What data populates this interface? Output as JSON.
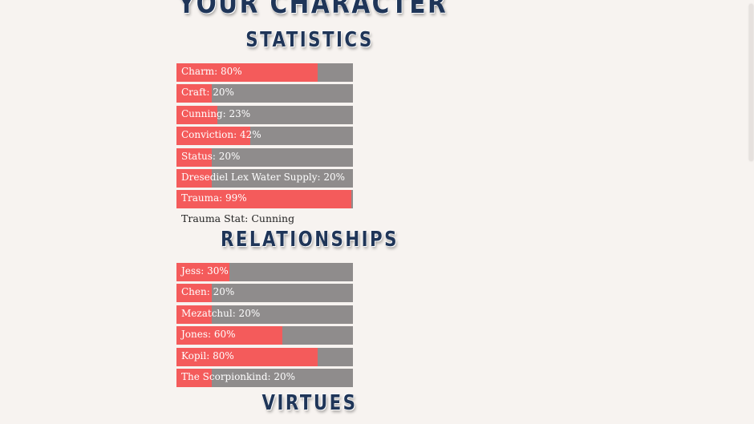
{
  "title": "Your Character",
  "colors": {
    "fill": "#f45b5b",
    "track": "#8f8c8c",
    "heading": "#1f3558",
    "background": "#f7f3f0"
  },
  "statistics": {
    "heading": "Statistics",
    "items": [
      {
        "label": "Charm: 80%",
        "percent": 80
      },
      {
        "label": "Craft: 20%",
        "percent": 20
      },
      {
        "label": "Cunning: 23%",
        "percent": 23
      },
      {
        "label": "Conviction: 42%",
        "percent": 42
      },
      {
        "label": "Status: 20%",
        "percent": 20
      },
      {
        "label": "Dresediel Lex Water Supply: 20%",
        "percent": 20
      },
      {
        "label": "Trauma: 99%",
        "percent": 99
      }
    ],
    "trauma_stat": "Trauma Stat: Cunning"
  },
  "relationships": {
    "heading": "Relationships",
    "items": [
      {
        "label": "Jess: 30%",
        "percent": 30
      },
      {
        "label": "Chen: 20%",
        "percent": 20
      },
      {
        "label": "Mezatchul: 20%",
        "percent": 20
      },
      {
        "label": "Jones: 60%",
        "percent": 60
      },
      {
        "label": "Kopil: 80%",
        "percent": 80
      },
      {
        "label": "The Scorpionkind: 20%",
        "percent": 20
      }
    ]
  },
  "virtues": {
    "heading": "Virtues"
  }
}
